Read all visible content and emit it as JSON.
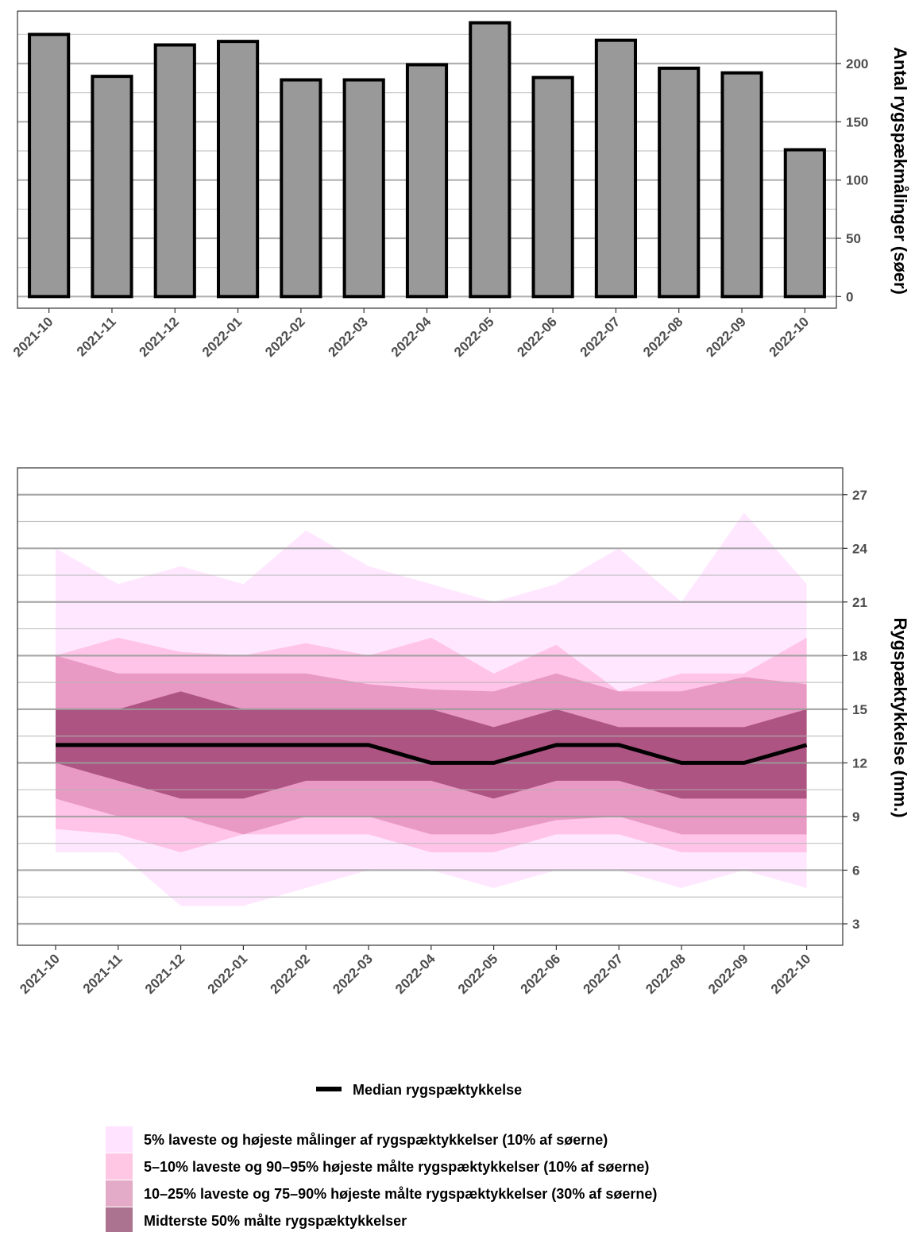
{
  "chart_data": [
    {
      "type": "bar",
      "categories": [
        "2021-10",
        "2021-11",
        "2021-12",
        "2022-01",
        "2022-02",
        "2022-03",
        "2022-04",
        "2022-05",
        "2022-06",
        "2022-07",
        "2022-08",
        "2022-09",
        "2022-10"
      ],
      "values": [
        225,
        189,
        216,
        219,
        186,
        186,
        199,
        235,
        188,
        220,
        196,
        192,
        126
      ],
      "ylabel": "Antal rygspækmålinger (søer)",
      "ylim": [
        -10,
        245
      ],
      "y_ticks": [
        0,
        50,
        100,
        150,
        200
      ],
      "y_axis_position": "right",
      "grid": true,
      "bar_fill": "#999999",
      "bar_stroke": "#000000"
    },
    {
      "type": "area",
      "categories": [
        "2021-10",
        "2021-11",
        "2021-12",
        "2022-01",
        "2022-02",
        "2022-03",
        "2022-04",
        "2022-05",
        "2022-06",
        "2022-07",
        "2022-08",
        "2022-09",
        "2022-10"
      ],
      "ylabel": "Rygspæktykkelse (mm.)",
      "ylim": [
        1.8,
        28.5
      ],
      "y_ticks": [
        3,
        6,
        9,
        12,
        15,
        18,
        21,
        24,
        27
      ],
      "y_axis_position": "right",
      "grid": true,
      "median": {
        "name": "Median rygspæktykkelse",
        "values": [
          13,
          13,
          13,
          13,
          13,
          13,
          12,
          12,
          13,
          13,
          12,
          12,
          13
        ],
        "color": "#000000"
      },
      "bands": [
        {
          "name": "5% laveste og højeste målinger af rygspæktykkelser (10% af søerne)",
          "color": "#ffccff",
          "lower": [
            7,
            7,
            4,
            4,
            5,
            6,
            6,
            5,
            6,
            6,
            5,
            6,
            5
          ],
          "upper": [
            24,
            22,
            23,
            22,
            25,
            23,
            22,
            21,
            22,
            24,
            21,
            26,
            22
          ]
        },
        {
          "name": "5–10% laveste og 90–95% højeste målte rygspæktykkelser (10% af søerne)",
          "color": "#ff99cc",
          "lower": [
            8.3,
            8,
            7,
            8,
            8,
            8,
            7,
            7,
            8,
            8,
            7,
            7,
            7
          ],
          "upper": [
            18,
            19,
            18.2,
            18,
            18.7,
            18,
            19,
            17,
            18.6,
            16,
            17,
            17,
            19
          ]
        },
        {
          "name": "10–25% laveste og 75–90% højeste målte rygspæktykkelser (30% af søerne)",
          "color": "#cc6699",
          "lower": [
            10,
            9,
            9,
            8,
            9,
            9,
            8,
            8,
            8.8,
            9,
            8,
            8,
            8
          ],
          "upper": [
            18,
            17,
            17,
            17,
            17,
            16.4,
            16.1,
            16,
            17,
            16,
            16,
            16.8,
            16.4
          ]
        },
        {
          "name": "Midterste 50% målte rygspæktykkelser",
          "color": "#660033",
          "lower": [
            12,
            11,
            10,
            10,
            11,
            11,
            11,
            10,
            11,
            11,
            10,
            10,
            10
          ],
          "upper": [
            15,
            15,
            16,
            15,
            15,
            15,
            15,
            14,
            15,
            14,
            14,
            14,
            15
          ]
        }
      ],
      "legend_position": "bottom"
    }
  ],
  "legend": {
    "median_label": "Median rygspæktykkelse",
    "band_labels": [
      "5% laveste og højeste målinger af rygspæktykkelser (10% af søerne)",
      "5–10% laveste og 90–95% højeste målte rygspæktykkelser (10% af søerne)",
      "10–25% laveste og 75–90% højeste målte rygspæktykkelser (30% af søerne)",
      "Midterste 50% målte rygspæktykkelser"
    ],
    "band_colors": [
      "#ffccff",
      "#ff99cc",
      "#cc6699",
      "#660033"
    ]
  }
}
